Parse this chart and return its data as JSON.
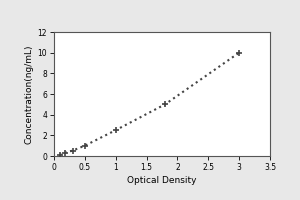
{
  "x_data": [
    0.092,
    0.173,
    0.3,
    0.5,
    1.0,
    1.8,
    3.0
  ],
  "y_data": [
    0.1,
    0.31,
    0.52,
    1.0,
    2.5,
    5.0,
    10.0
  ],
  "xlabel": "Optical Density",
  "ylabel": "Concentration(ng/mL)",
  "xlim": [
    0,
    3.5
  ],
  "ylim": [
    0,
    12
  ],
  "xtick_vals": [
    0,
    0.5,
    1.0,
    1.5,
    2.0,
    2.5,
    3.0,
    3.5
  ],
  "xtick_labels": [
    "0",
    "0.5",
    "1",
    "1.5",
    "2",
    "2.5",
    "3",
    "3.5"
  ],
  "ytick_vals": [
    0,
    2,
    4,
    6,
    8,
    10,
    12
  ],
  "ytick_labels": [
    "0",
    "2",
    "4",
    "6",
    "8",
    "10",
    "12"
  ],
  "line_color": "#444444",
  "marker": "+",
  "marker_color": "#444444",
  "marker_size": 5,
  "marker_edge_width": 1.2,
  "line_style": ":",
  "line_width": 1.5,
  "outer_bg_color": "#e8e8e8",
  "plot_bg_color": "#ffffff",
  "border_color": "#555555",
  "tick_fontsize": 5.5,
  "label_fontsize": 6.5,
  "spine_linewidth": 0.8
}
